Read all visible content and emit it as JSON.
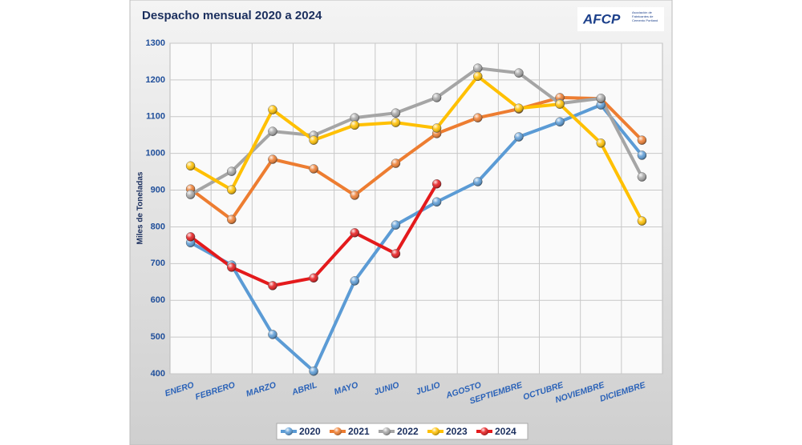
{
  "chart_data": {
    "type": "line",
    "title": "Despacho mensual 2020 a 2024",
    "logo": {
      "name": "AFCP",
      "text": "Asociación de Fabricantes de Cemento Portland"
    },
    "y_label": "Miles de Toneladas",
    "categories": [
      "ENERO",
      "FEBRERO",
      "MARZO",
      "ABRIL",
      "MAYO",
      "JUNIO",
      "JULIO",
      "AGOSTO",
      "SEPTIEMBRE",
      "OCTUBRE",
      "NOVIEMBRE",
      "DICIEMBRE"
    ],
    "series": [
      {
        "name": "2020",
        "color": "#5b9bd5",
        "values": [
          757,
          696,
          507,
          407,
          653,
          805,
          868,
          923,
          1045,
          1086,
          1132,
          995
        ]
      },
      {
        "name": "2021",
        "color": "#ed7d31",
        "values": [
          903,
          820,
          984,
          958,
          886,
          973,
          1054,
          1097,
          1121,
          1152,
          1149,
          1036
        ]
      },
      {
        "name": "2022",
        "color": "#a5a5a5",
        "values": [
          888,
          951,
          1060,
          1049,
          1097,
          1110,
          1152,
          1232,
          1219,
          1136,
          1150,
          936
        ]
      },
      {
        "name": "2023",
        "color": "#ffc000",
        "values": [
          966,
          901,
          1119,
          1036,
          1077,
          1084,
          1069,
          1210,
          1123,
          1134,
          1028,
          816
        ]
      },
      {
        "name": "2024",
        "color": "#e41a1c",
        "values": [
          773,
          690,
          640,
          661,
          784,
          727,
          917,
          null,
          null,
          null,
          null,
          null
        ]
      }
    ],
    "ylim": [
      400,
      1300
    ],
    "yticks": [
      400,
      500,
      600,
      700,
      800,
      900,
      1000,
      1100,
      1200,
      1300
    ],
    "grid": true,
    "legend": "bottom"
  }
}
